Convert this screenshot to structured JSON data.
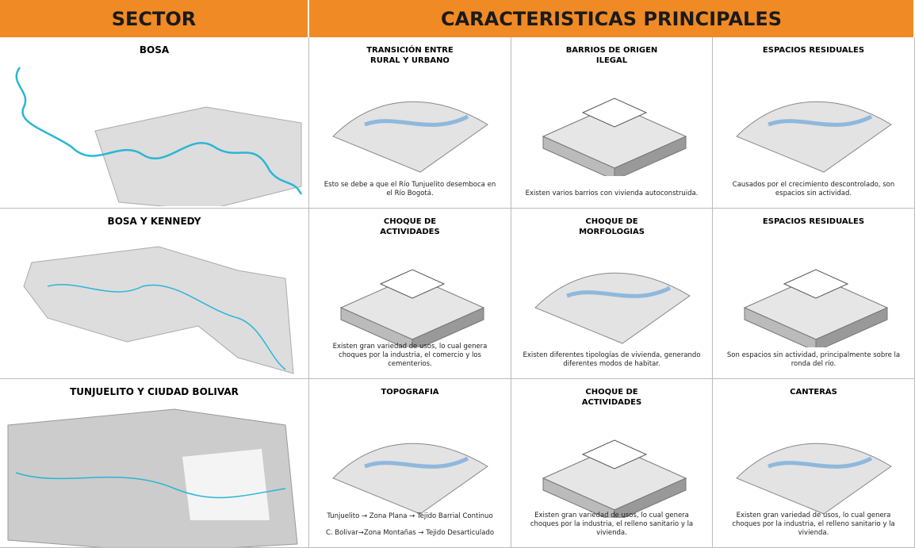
{
  "header": {
    "sector": "SECTOR",
    "features": "CARACTERISTICAS PRINCIPALES"
  },
  "rows": [
    {
      "sector": "BOSA",
      "cells": [
        {
          "title": "TRANSICIÓN ENTRE RURAL Y URBANO",
          "captions": [
            "Esto se debe a que el Río Tunjuelito desemboca en el Río Bogotá."
          ]
        },
        {
          "title": "BARRIOS DE ORIGEN ILEGAL",
          "captions": [
            "Existen varios barrios con vivienda autoconstruida."
          ]
        },
        {
          "title": "ESPACIOS RESIDUALES",
          "captions": [
            "Causados por el crecimiento descontrolado, son espacios sin actividad."
          ]
        }
      ]
    },
    {
      "sector": "BOSA Y KENNEDY",
      "cells": [
        {
          "title": "CHOQUE DE ACTIVIDADES",
          "captions": [
            "Existen gran variedad de usos, lo cual genera choques por la industria, el comercio y los cementerios."
          ]
        },
        {
          "title": "CHOQUE DE MORFOLOGIAS",
          "captions": [
            "Existen diferentes tipologías de vivienda, generando diferentes modos de habitar."
          ]
        },
        {
          "title": "ESPACIOS RESIDUALES",
          "captions": [
            "Son espacios sin actividad, principalmente sobre la ronda del río."
          ]
        }
      ]
    },
    {
      "sector": "TUNJUELITO Y CIUDAD BOLIVAR",
      "cells": [
        {
          "title": "TOPOGRAFIA",
          "captions": [
            "Tunjuelito → Zona Plana → Tejido Barrial Continuo",
            "C. Bolivar→Zona Montañas → Tejido Desarticulado"
          ]
        },
        {
          "title": "CHOQUE DE ACTIVIDADES",
          "captions": [
            "Existen gran variedad de usos, lo cual genera choques por la industria, el relleno sanitario y la vivienda."
          ]
        },
        {
          "title": "CANTERAS",
          "captions": [
            "Existen gran variedad de usos, lo cual genera choques por la industria, el relleno sanitario y la vivienda."
          ]
        }
      ]
    }
  ]
}
